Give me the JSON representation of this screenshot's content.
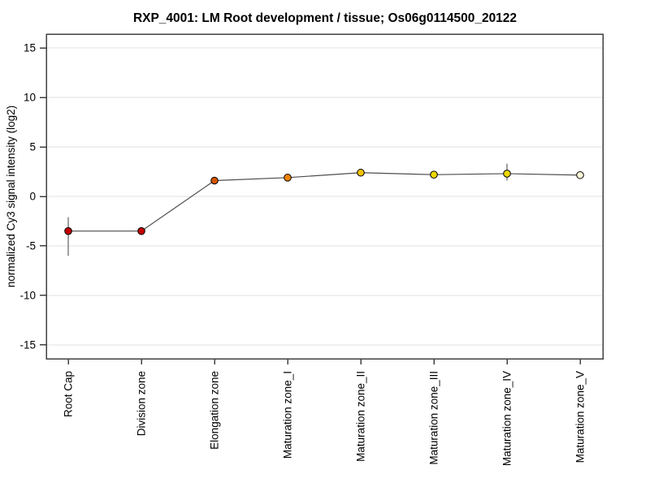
{
  "page": {
    "background": "#ffffff"
  },
  "chart_data": {
    "type": "line",
    "title": "RXP_4001: LM Root development / tissue; Os06g0114500_20122",
    "xlabel": "",
    "ylabel": "normalized Cy3 signal intensity (log2)",
    "categories": [
      "Root Cap",
      "Division zone",
      "Elongation zone",
      "Maturation zone_I",
      "Maturation zone_II",
      "Maturation zone_III",
      "Maturation zone_IV",
      "Maturation zone_V"
    ],
    "series": [
      {
        "name": "normalized Cy3 signal",
        "values": [
          -3.5,
          -3.5,
          1.6,
          1.9,
          2.4,
          2.2,
          2.3,
          2.15
        ],
        "error_low": [
          -6.0,
          -3.9,
          null,
          null,
          null,
          null,
          1.6,
          null
        ],
        "error_high": [
          -2.1,
          -3.1,
          null,
          null,
          null,
          null,
          3.3,
          null
        ],
        "point_colors": [
          "#c40000",
          "#c40000",
          "#d25400",
          "#ee8400",
          "#f3c300",
          "#ecd800",
          "#ecd800",
          "#fdf8d8"
        ]
      }
    ],
    "ylim": [
      -16.4,
      16.4
    ],
    "yticks": [
      15,
      10,
      5,
      0,
      -5,
      -10,
      -15
    ],
    "grid": "horizontal",
    "legend": "none",
    "colors": {
      "grid": "#e0e0e0",
      "axis_box": "#404040",
      "tick": "#404040",
      "series_line": "#4d4d4d",
      "error_bar": "#808080",
      "point_border": "#000000",
      "text": "#000000"
    }
  }
}
